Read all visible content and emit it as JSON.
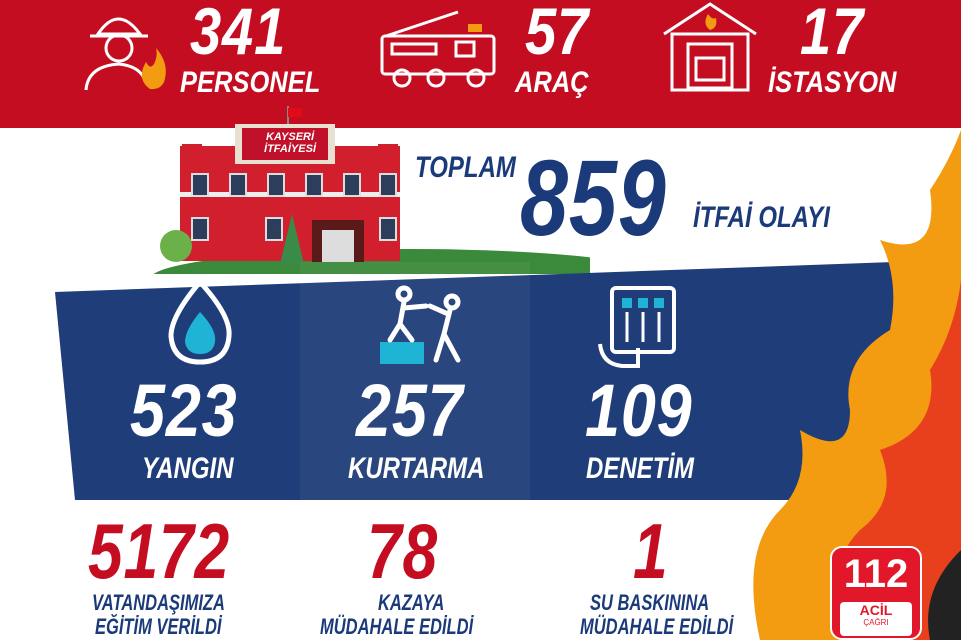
{
  "top_stats": [
    {
      "value": "341",
      "label": "PERSONEL",
      "icon": "firefighter-icon"
    },
    {
      "value": "57",
      "label": "ARAÇ",
      "icon": "fire-truck-icon"
    },
    {
      "value": "17",
      "label": "İSTASYON",
      "icon": "fire-station-icon"
    }
  ],
  "building": {
    "sign": "KAYSERİ İTFAİYESİ"
  },
  "total": {
    "prefix": "TOPLAM",
    "value": "859",
    "suffix": "İTFAİ OLAYI"
  },
  "panel_stats": [
    {
      "value": "523",
      "label": "YANGIN",
      "icon": "flame-icon"
    },
    {
      "value": "257",
      "label": "KURTARMA",
      "icon": "rescue-icon"
    },
    {
      "value": "109",
      "label": "DENETİM",
      "icon": "inspection-tablet-icon"
    }
  ],
  "bottom_stats": [
    {
      "value": "5172",
      "line1": "VATANDAŞIMIZA",
      "line2": "EĞİTİM VERİLDİ"
    },
    {
      "value": "78",
      "line1": "KAZAYA",
      "line2": "MÜDAHALE EDİLDİ"
    },
    {
      "value": "1",
      "line1": "SU BASKININA",
      "line2": "MÜDAHALE EDİLDİ"
    }
  ],
  "emergency": {
    "number": "112",
    "line1": "ACİL",
    "line2": "ÇAĞRI"
  },
  "colors": {
    "red": "#c50d22",
    "blue": "#1f3d78",
    "dark_blue": "#1b3a7a",
    "orange": "#f39c12"
  }
}
